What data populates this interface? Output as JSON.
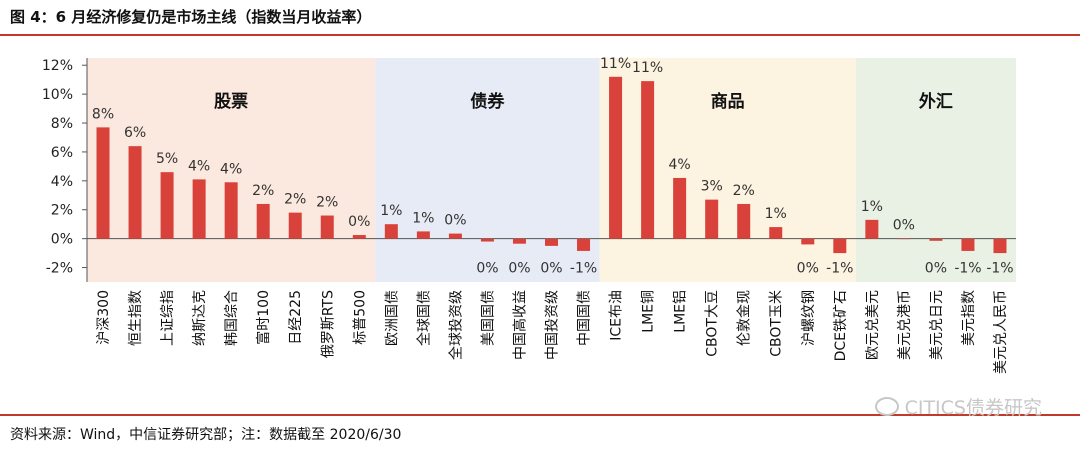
{
  "header": {
    "title": "图 4：6 月经济修复仍是市场主线（指数当月收益率）"
  },
  "footer": {
    "source": "资料来源：Wind，中信证券研究部；注：数据截至 2020/6/30",
    "watermark": "CITICS债券研究"
  },
  "colors": {
    "bar": "#d9423a",
    "stocks_bg": "#fbe9df",
    "bonds_bg": "#e7ebf6",
    "commodities_bg": "#fdf3e1",
    "fx_bg": "#e9f1e4",
    "accent": "#c0392b"
  },
  "chart_data": {
    "type": "bar",
    "title": "",
    "xlabel": "",
    "ylabel": "",
    "ylim": [
      -3,
      12.5
    ],
    "yticks": [
      -2,
      0,
      2,
      4,
      6,
      8,
      10,
      12
    ],
    "ytick_labels": [
      "-2%",
      "0%",
      "2%",
      "4%",
      "6%",
      "8%",
      "10%",
      "12%"
    ],
    "grid": false,
    "categories": [
      "沪深300",
      "恒生指数",
      "上证综指",
      "纳斯达克",
      "韩国综合",
      "富时100",
      "日经225",
      "俄罗斯RTS",
      "标普500",
      "欧洲国债",
      "全球国债",
      "全球投资级",
      "美国国债",
      "中国高收益",
      "中国投资级",
      "中国国债",
      "ICE布油",
      "LME铜",
      "LME铝",
      "CBOT大豆",
      "伦敦金现",
      "CBOT玉米",
      "沪螺纹钢",
      "DCE铁矿石",
      "欧元兑美元",
      "美元兑港币",
      "美元兑日元",
      "美元指数",
      "美元兑人民币"
    ],
    "values": [
      7.7,
      6.4,
      4.6,
      4.1,
      3.9,
      2.4,
      1.8,
      1.6,
      0.25,
      1.0,
      0.5,
      0.35,
      -0.2,
      -0.35,
      -0.5,
      -0.85,
      11.2,
      10.9,
      4.2,
      2.7,
      2.4,
      0.8,
      -0.4,
      -1.0,
      1.3,
      0.0,
      -0.15,
      -0.85,
      -1.0
    ],
    "data_labels": [
      "8%",
      "6%",
      "5%",
      "4%",
      "4%",
      "2%",
      "2%",
      "2%",
      "0%",
      "1%",
      "1%",
      "0%",
      "0%",
      "0%",
      "0%",
      "-1%",
      "11%",
      "11%",
      "4%",
      "3%",
      "2%",
      "1%",
      "0%",
      "-1%",
      "1%",
      "0%",
      "0%",
      "-1%",
      "-1%"
    ],
    "groups": [
      {
        "name": "股票",
        "start": 0,
        "end": 8,
        "color": "#fbe9df"
      },
      {
        "name": "债券",
        "start": 9,
        "end": 15,
        "color": "#e7ebf6"
      },
      {
        "name": "商品",
        "start": 16,
        "end": 23,
        "color": "#fdf3e1"
      },
      {
        "name": "外汇",
        "start": 24,
        "end": 28,
        "color": "#e9f1e4"
      }
    ],
    "legend": "none"
  }
}
